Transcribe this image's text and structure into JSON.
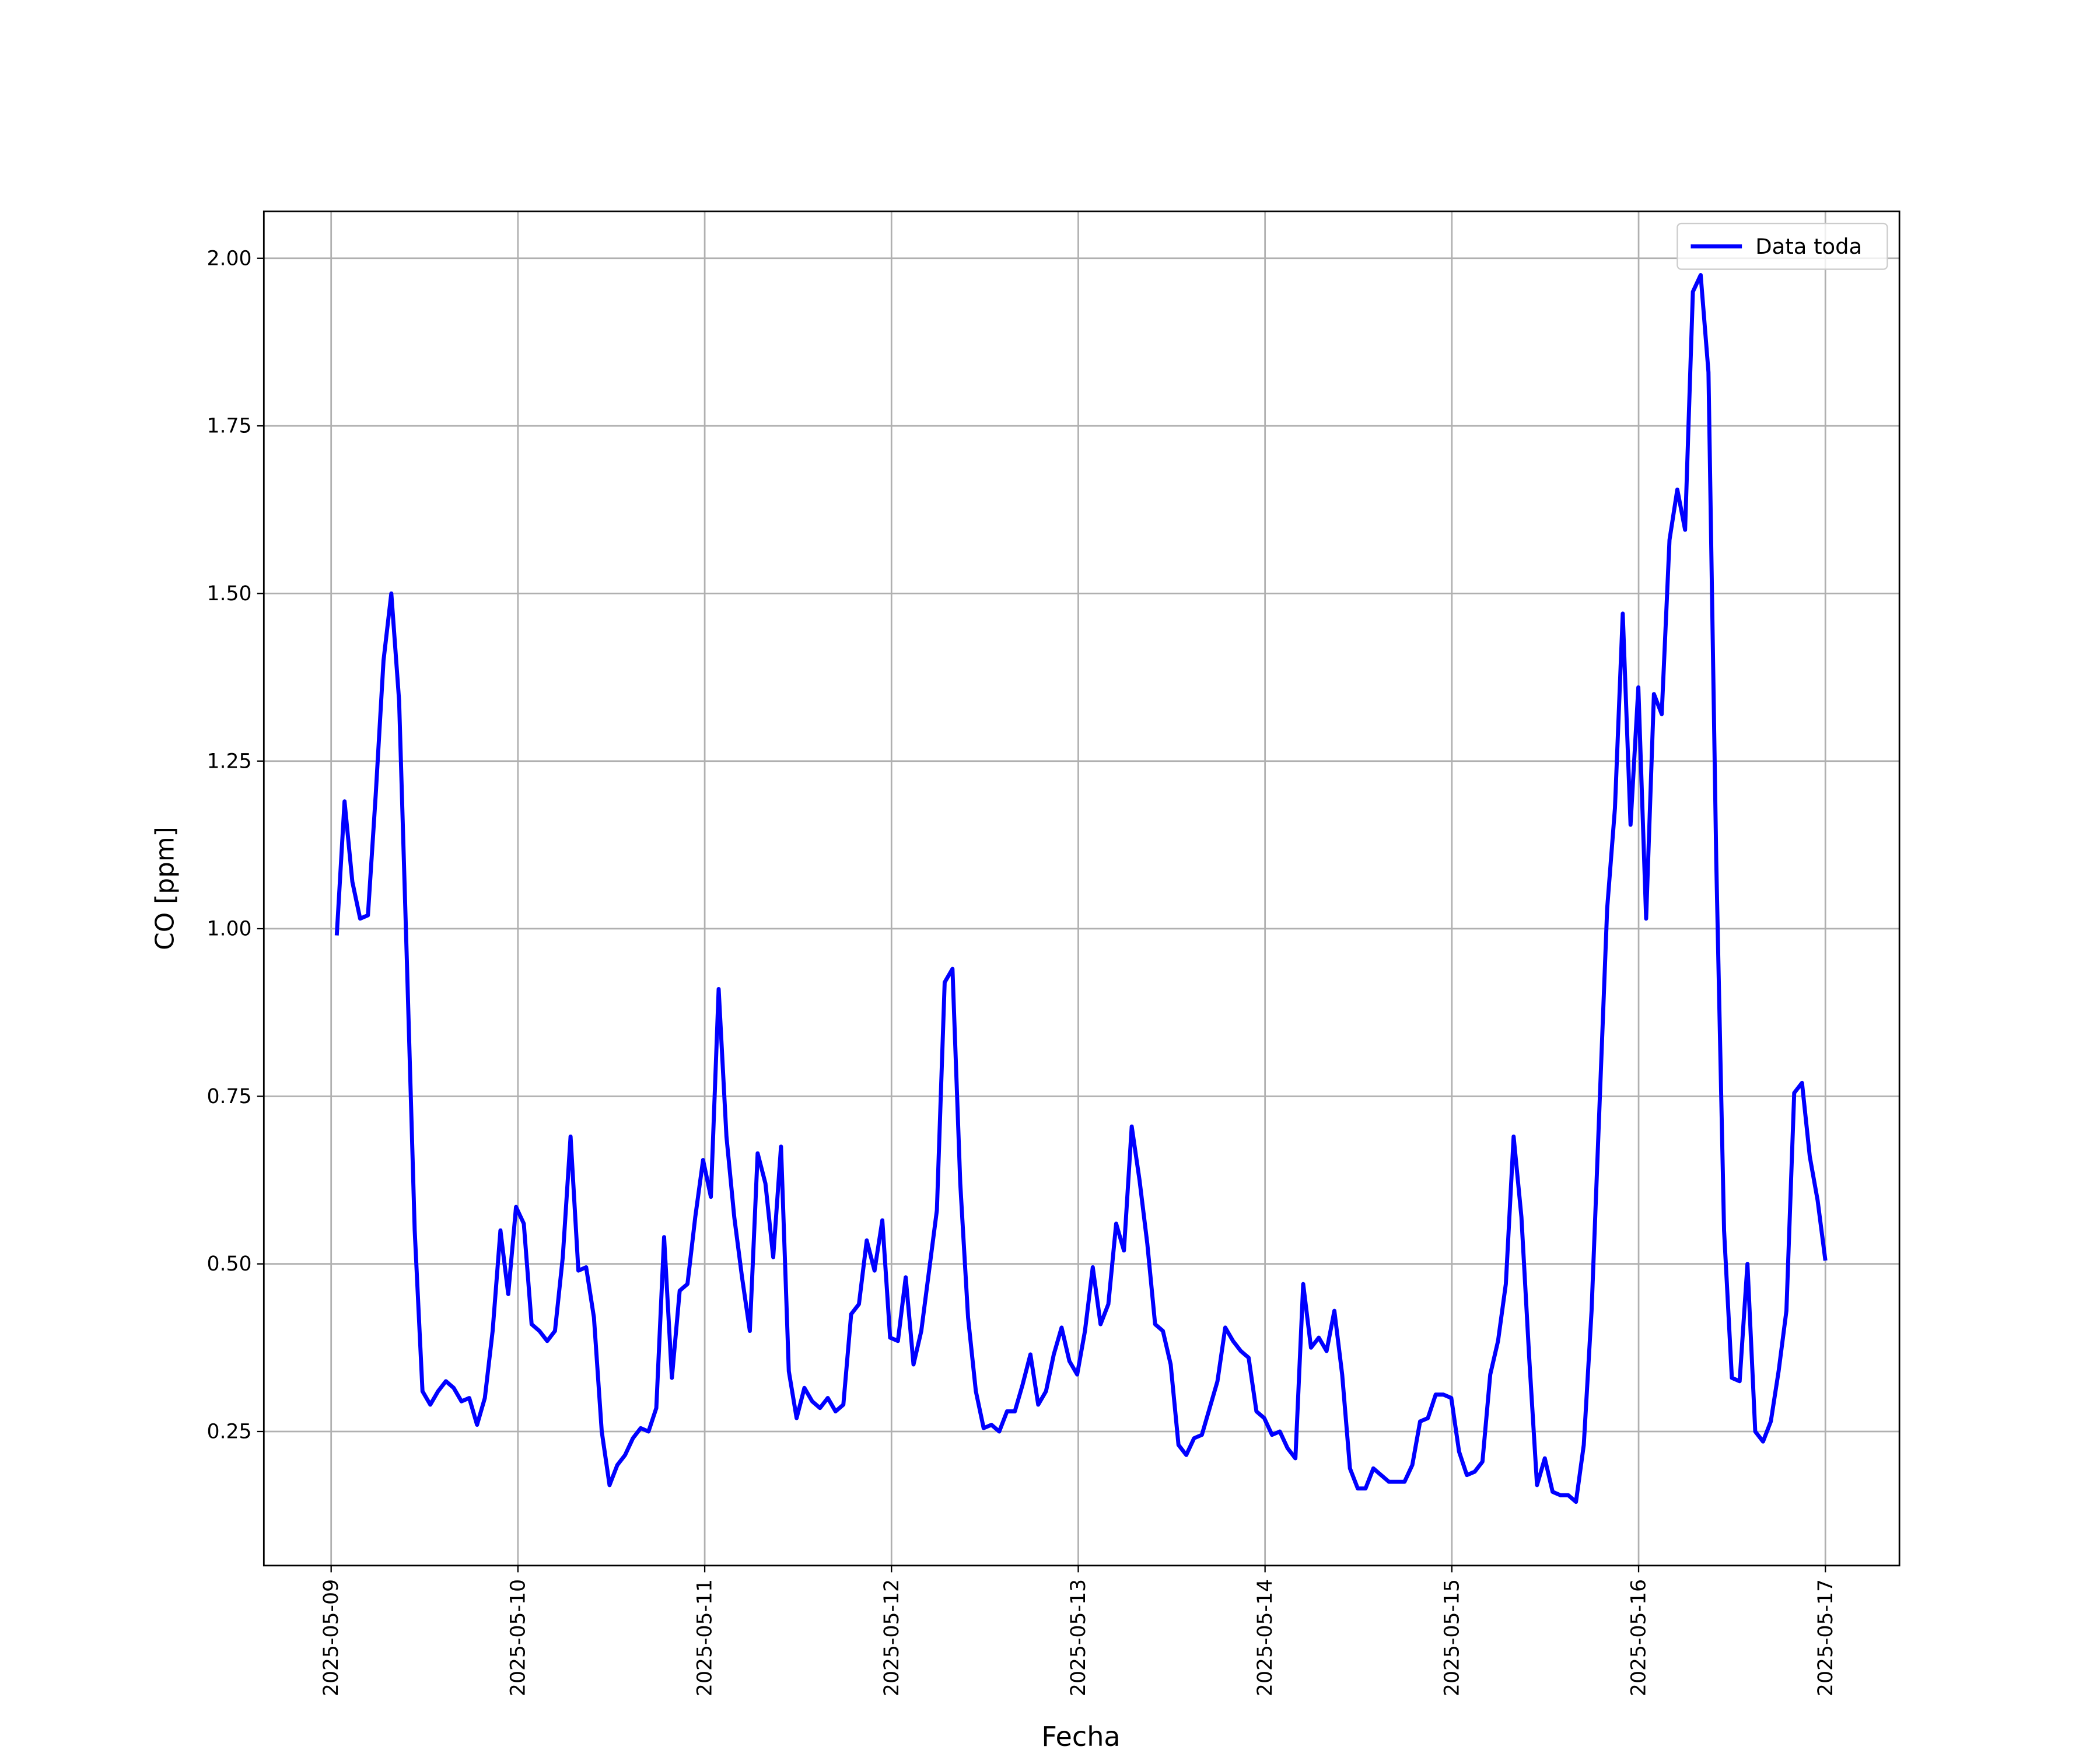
{
  "chart_data": {
    "type": "line",
    "xlabel": "Fecha",
    "ylabel": "CO [ppm]",
    "xticks": [
      "2025-05-09",
      "2025-05-10",
      "2025-05-11",
      "2025-05-12",
      "2025-05-13",
      "2025-05-14",
      "2025-05-15",
      "2025-05-16",
      "2025-05-17"
    ],
    "ylim": [
      0.05,
      2.07
    ],
    "yticks": [
      {
        "value": 0.25,
        "label": "0.25"
      },
      {
        "value": 0.5,
        "label": "0.50"
      },
      {
        "value": 0.75,
        "label": "0.75"
      },
      {
        "value": 1,
        "label": "1.00"
      },
      {
        "value": 1.25,
        "label": "1.25"
      },
      {
        "value": 1.5,
        "label": "1.50"
      },
      {
        "value": 1.75,
        "label": "1.75"
      },
      {
        "value": 2,
        "label": "2.00"
      }
    ],
    "grid": true,
    "legend": "upper right",
    "series": [
      {
        "name": "Data toda",
        "color": "#0000ff",
        "values": [
          0.99,
          1.19,
          1.07,
          1.015,
          1.02,
          1.2,
          1.4,
          1.5,
          1.34,
          0.95,
          0.55,
          0.31,
          0.29,
          0.31,
          0.325,
          0.315,
          0.295,
          0.3,
          0.26,
          0.3,
          0.4,
          0.55,
          0.455,
          0.585,
          0.56,
          0.41,
          0.4,
          0.385,
          0.4,
          0.51,
          0.69,
          0.49,
          0.495,
          0.42,
          0.25,
          0.17,
          0.2,
          0.215,
          0.24,
          0.255,
          0.25,
          0.285,
          0.54,
          0.33,
          0.46,
          0.47,
          0.57,
          0.655,
          0.6,
          0.91,
          0.69,
          0.57,
          0.48,
          0.4,
          0.665,
          0.62,
          0.51,
          0.675,
          0.34,
          0.27,
          0.315,
          0.295,
          0.285,
          0.3,
          0.28,
          0.29,
          0.425,
          0.44,
          0.535,
          0.49,
          0.565,
          0.39,
          0.385,
          0.48,
          0.35,
          0.4,
          0.49,
          0.58,
          0.92,
          0.94,
          0.62,
          0.42,
          0.31,
          0.255,
          0.26,
          0.25,
          0.28,
          0.28,
          0.32,
          0.365,
          0.29,
          0.31,
          0.365,
          0.405,
          0.355,
          0.335,
          0.4,
          0.495,
          0.41,
          0.44,
          0.56,
          0.52,
          0.705,
          0.625,
          0.53,
          0.41,
          0.4,
          0.35,
          0.23,
          0.215,
          0.24,
          0.245,
          0.285,
          0.325,
          0.405,
          0.385,
          0.37,
          0.36,
          0.28,
          0.27,
          0.245,
          0.25,
          0.225,
          0.21,
          0.47,
          0.375,
          0.39,
          0.37,
          0.43,
          0.335,
          0.195,
          0.165,
          0.165,
          0.195,
          0.185,
          0.175,
          0.175,
          0.175,
          0.2,
          0.265,
          0.27,
          0.305,
          0.305,
          0.3,
          0.22,
          0.185,
          0.19,
          0.205,
          0.335,
          0.385,
          0.47,
          0.69,
          0.57,
          0.36,
          0.17,
          0.21,
          0.16,
          0.155,
          0.155,
          0.145,
          0.23,
          0.43,
          0.73,
          1.03,
          1.18,
          1.47,
          1.155,
          1.36,
          1.015,
          1.35,
          1.32,
          1.58,
          1.655,
          1.595,
          1.95,
          1.975,
          1.83,
          1.1,
          0.55,
          0.33,
          0.325,
          0.5,
          0.25,
          0.235,
          0.265,
          0.34,
          0.43,
          0.755,
          0.77,
          0.66,
          0.595,
          0.505
        ]
      }
    ]
  }
}
